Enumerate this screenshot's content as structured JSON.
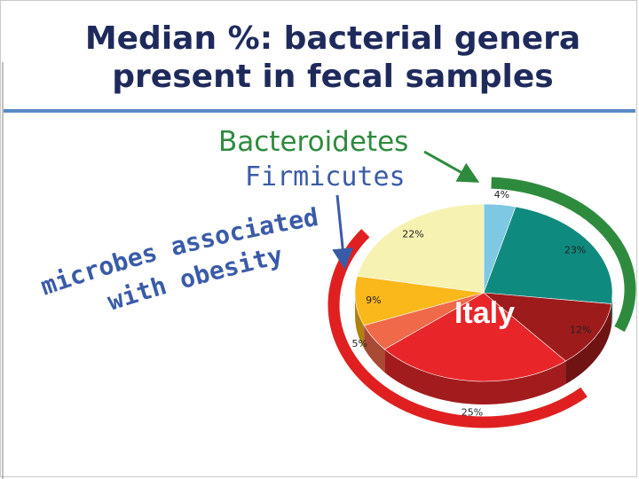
{
  "slide": {
    "title_line1": "Median %: bacterial genera",
    "title_line2": "present in fecal samples",
    "annotation_bacteroidetes": "Bacteroidetes",
    "annotation_firmicutes": "Firmicutes",
    "annotation_obesity": "microbes associated with obesity",
    "pie_label": "Italy"
  },
  "colors": {
    "title": "#1f2a5c",
    "bacteroidetes": "#2e8b3e",
    "firmicutes": "#3a5ba8",
    "firmicutes_arc": "#e02020",
    "bacteroidetes_arc": "#2e8b3e"
  },
  "chart_data": {
    "type": "pie",
    "title": "",
    "center_label": "Italy",
    "slices": [
      {
        "label": "4%",
        "value": 4,
        "color": "#7ec8e3"
      },
      {
        "label": "23%",
        "value": 23,
        "color": "#0f8a7f"
      },
      {
        "label": "12%",
        "value": 12,
        "color": "#9e1b1b"
      },
      {
        "label": "25%",
        "value": 25,
        "color": "#e8262a"
      },
      {
        "label": "5%",
        "value": 5,
        "color": "#f06a4a"
      },
      {
        "label": "9%",
        "value": 9,
        "color": "#fbb81a"
      },
      {
        "label": "22%",
        "value": 22,
        "color": "#f6f3b2"
      }
    ]
  }
}
